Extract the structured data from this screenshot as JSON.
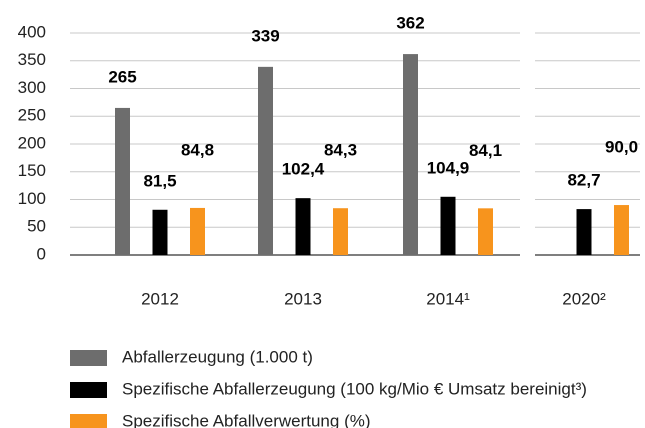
{
  "chart_data": {
    "type": "bar",
    "categories": [
      "2012",
      "2013",
      "2014¹",
      "2020²"
    ],
    "series": [
      {
        "name": "Abfallerzeugung (1.000 t)",
        "color": "#6d6d6d",
        "values": [
          265,
          339,
          362,
          null
        ]
      },
      {
        "name": "Spezifische Abfallerzeugung (100 kg/Mio € Umsatz bereinigt³)",
        "color": "#000000",
        "values": [
          81.5,
          102.4,
          104.9,
          82.7
        ],
        "value_labels": [
          "81,5",
          "102,4",
          "104,9",
          "82,7"
        ]
      },
      {
        "name": "Spezifische Abfallverwertung (%)",
        "color": "#f7941d",
        "values": [
          84.8,
          84.3,
          84.1,
          90.0
        ],
        "value_labels": [
          "84,8",
          "84,3",
          "84,1",
          "90,0"
        ]
      }
    ],
    "ylim": [
      0,
      400
    ],
    "yticks": [
      0,
      50,
      100,
      150,
      200,
      250,
      300,
      350,
      400
    ],
    "grid": true
  }
}
